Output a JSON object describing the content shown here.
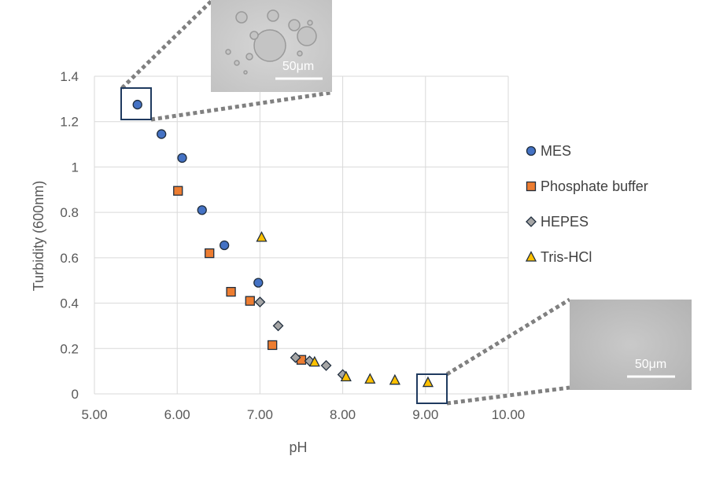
{
  "chart_data": {
    "type": "scatter",
    "xlabel": "pH",
    "ylabel": "Turbidity (600nm)",
    "xlim": [
      5.0,
      10.0
    ],
    "ylim": [
      0,
      1.4
    ],
    "x_ticks": [
      "5.00",
      "6.00",
      "7.00",
      "8.00",
      "9.00",
      "10.00"
    ],
    "y_ticks": [
      "0",
      "0.2",
      "0.4",
      "0.6",
      "0.8",
      "1",
      "1.2",
      "1.4"
    ],
    "grid": true,
    "legend_position": "right",
    "series": [
      {
        "name": "MES",
        "marker": "circle",
        "color": "#4472C4",
        "points": [
          [
            5.52,
            1.275
          ],
          [
            5.81,
            1.145
          ],
          [
            6.06,
            1.04
          ],
          [
            6.3,
            0.81
          ],
          [
            6.57,
            0.655
          ],
          [
            6.98,
            0.49
          ]
        ]
      },
      {
        "name": "Phosphate buffer",
        "marker": "square",
        "color": "#ED7D31",
        "points": [
          [
            6.01,
            0.895
          ],
          [
            6.39,
            0.62
          ],
          [
            6.65,
            0.45
          ],
          [
            6.88,
            0.41
          ],
          [
            7.15,
            0.215
          ],
          [
            7.5,
            0.15
          ]
        ]
      },
      {
        "name": "HEPES",
        "marker": "diamond",
        "color": "#A5A5A5",
        "points": [
          [
            7.0,
            0.405
          ],
          [
            7.22,
            0.3
          ],
          [
            7.43,
            0.16
          ],
          [
            7.6,
            0.145
          ],
          [
            7.8,
            0.125
          ],
          [
            8.0,
            0.085
          ]
        ]
      },
      {
        "name": "Tris-HCl",
        "marker": "triangle",
        "color": "#FFC000",
        "points": [
          [
            7.02,
            0.69
          ],
          [
            7.66,
            0.14
          ],
          [
            8.04,
            0.075
          ],
          [
            8.33,
            0.065
          ],
          [
            8.63,
            0.06
          ],
          [
            9.03,
            0.05
          ]
        ]
      }
    ],
    "insets": [
      {
        "caption": "50μm",
        "highlight_point": [
          5.52,
          1.275
        ],
        "description": "micrograph with droplets"
      },
      {
        "caption": "50μm",
        "highlight_point": [
          9.03,
          0.05
        ],
        "description": "micrograph without droplets"
      }
    ]
  },
  "colors": {
    "marker_stroke": "#1F2D3D",
    "grid": "#D9D9D9",
    "callout_line": "#808080",
    "highlight_box": "#1F3A5F"
  }
}
